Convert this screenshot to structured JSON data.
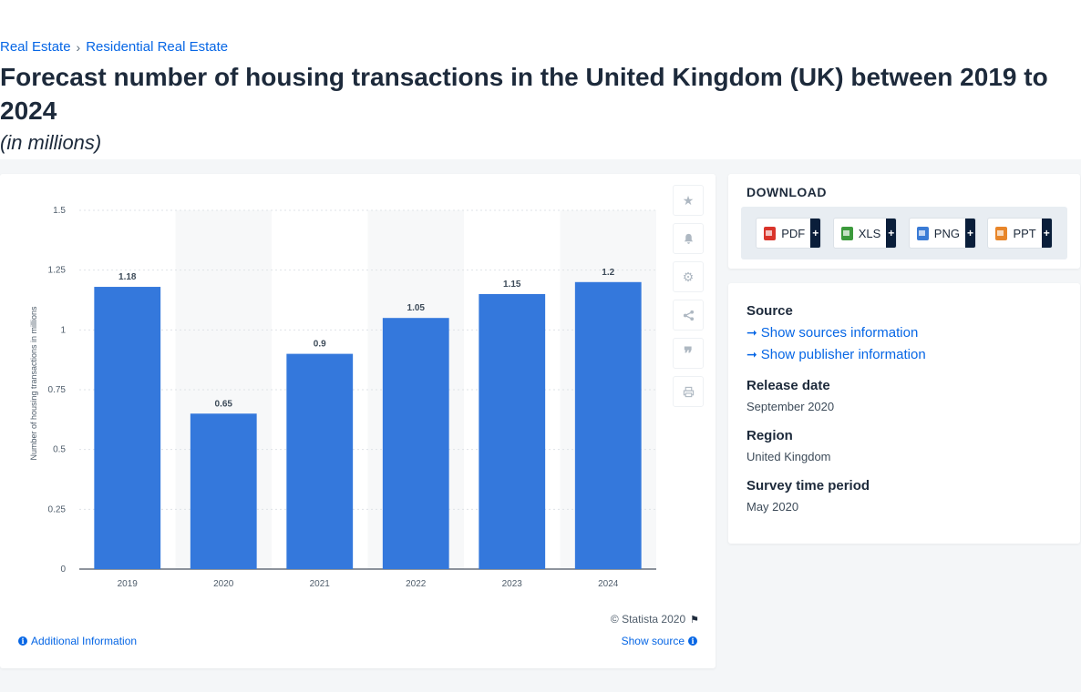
{
  "breadcrumb": {
    "item1": "Real Estate",
    "separator": "›",
    "item2": "Residential Real Estate"
  },
  "title": "Forecast number of housing transactions in the United Kingdom (UK) between 2019 to 2024",
  "subtitle": "(in millions)",
  "tools": [
    "star-icon",
    "bell-icon",
    "gear-icon",
    "share-icon",
    "quote-icon",
    "print-icon"
  ],
  "chart_footer": {
    "copyright": "© Statista 2020",
    "additional_info": "Additional Information",
    "show_source": "Show source"
  },
  "download": {
    "title": "DOWNLOAD",
    "buttons": [
      {
        "label": "PDF",
        "icon": "pdf-file-icon",
        "color": "#d9342b"
      },
      {
        "label": "XLS",
        "icon": "xls-file-icon",
        "color": "#3c9a3c"
      },
      {
        "label": "PNG",
        "icon": "png-file-icon",
        "color": "#3a7bd5"
      },
      {
        "label": "PPT",
        "icon": "ppt-file-icon",
        "color": "#e8862a"
      }
    ],
    "plus": "+"
  },
  "source": {
    "heading": "Source",
    "sources_link": "Show sources information",
    "publisher_link": "Show publisher information",
    "release_date_label": "Release date",
    "release_date": "September 2020",
    "region_label": "Region",
    "region": "United Kingdom",
    "survey_label": "Survey time period",
    "survey": "May 2020"
  },
  "colors": {
    "bar": "#3478dc",
    "accent": "#0666e5",
    "text": "#1d2a3b"
  },
  "chart_data": {
    "type": "bar",
    "categories": [
      "2019",
      "2020",
      "2021",
      "2022",
      "2023",
      "2024"
    ],
    "values": [
      1.18,
      0.65,
      0.9,
      1.05,
      1.15,
      1.2
    ],
    "value_labels": [
      "1.18",
      "0.65",
      "0.9",
      "1.05",
      "1.15",
      "1.2"
    ],
    "title": "",
    "xlabel": "",
    "ylabel": "Number of housing transactions in millions",
    "ylim": [
      0,
      1.5
    ],
    "yticks": [
      0,
      0.25,
      0.5,
      0.75,
      1,
      1.25,
      1.5
    ],
    "ytick_labels": [
      "0",
      "0.25",
      "0.5",
      "0.75",
      "1",
      "1.25",
      "1.5"
    ],
    "grid": true,
    "alternating_column_shading": true
  }
}
